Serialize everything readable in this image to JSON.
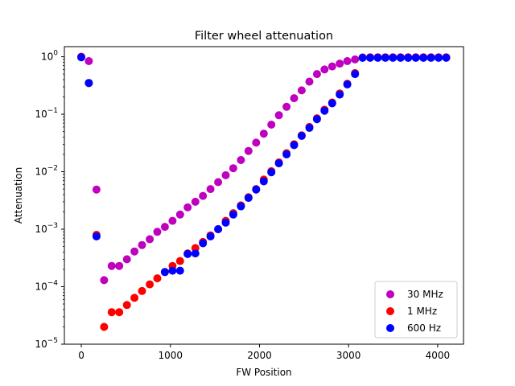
{
  "chart_data": {
    "type": "scatter",
    "title": "Filter wheel attenuation",
    "xlabel": "FW Position",
    "ylabel": "Attenuation",
    "xlim": [
      -190,
      4290
    ],
    "ylim": [
      1e-05,
      1.5
    ],
    "yscale": "log",
    "x_ticks": [
      0,
      1000,
      2000,
      3000,
      4000
    ],
    "y_ticks": [
      {
        "value": 1e-05,
        "base": "10",
        "exp": "−5"
      },
      {
        "value": 0.0001,
        "base": "10",
        "exp": "−4"
      },
      {
        "value": 0.001,
        "base": "10",
        "exp": "−3"
      },
      {
        "value": 0.01,
        "base": "10",
        "exp": "−2"
      },
      {
        "value": 0.1,
        "base": "10",
        "exp": "−1"
      },
      {
        "value": 1,
        "base": "10",
        "exp": "0"
      }
    ],
    "grid": false,
    "legend_position": "lower-right",
    "series": [
      {
        "name": "30 MHz",
        "color": "#bf00bf",
        "points": [
          [
            0,
            1.0
          ],
          [
            85,
            0.84
          ],
          [
            170,
            0.0049
          ],
          [
            256,
            0.00013
          ],
          [
            341,
            0.00023
          ],
          [
            426,
            0.00023
          ],
          [
            512,
            0.0003
          ],
          [
            597,
            0.00041
          ],
          [
            682,
            0.00053
          ],
          [
            768,
            0.00067
          ],
          [
            853,
            0.0009
          ],
          [
            938,
            0.0011
          ],
          [
            1024,
            0.0014
          ],
          [
            1109,
            0.0018
          ],
          [
            1194,
            0.0024
          ],
          [
            1280,
            0.003
          ],
          [
            1365,
            0.0038
          ],
          [
            1450,
            0.005
          ],
          [
            1536,
            0.0066
          ],
          [
            1621,
            0.0087
          ],
          [
            1706,
            0.0115
          ],
          [
            1792,
            0.016
          ],
          [
            1877,
            0.023
          ],
          [
            1962,
            0.032
          ],
          [
            2048,
            0.046
          ],
          [
            2133,
            0.066
          ],
          [
            2218,
            0.096
          ],
          [
            2304,
            0.135
          ],
          [
            2389,
            0.19
          ],
          [
            2474,
            0.26
          ],
          [
            2560,
            0.37
          ],
          [
            2645,
            0.5
          ],
          [
            2730,
            0.6
          ],
          [
            2816,
            0.68
          ],
          [
            2901,
            0.76
          ],
          [
            2986,
            0.84
          ],
          [
            3072,
            0.9
          ],
          [
            3157,
            0.97
          ],
          [
            3242,
            0.98
          ],
          [
            3328,
            0.98
          ],
          [
            3413,
            0.98
          ],
          [
            3498,
            0.98
          ],
          [
            3584,
            0.98
          ],
          [
            3669,
            0.98
          ],
          [
            3754,
            0.98
          ],
          [
            3840,
            0.98
          ],
          [
            3925,
            0.98
          ],
          [
            4010,
            0.98
          ],
          [
            4096,
            0.98
          ]
        ]
      },
      {
        "name": "1 MHz",
        "color": "#ff0000",
        "points": [
          [
            0,
            1.0
          ],
          [
            85,
            0.35
          ],
          [
            170,
            0.0008
          ],
          [
            256,
            2e-05
          ],
          [
            341,
            3.6e-05
          ],
          [
            426,
            3.6e-05
          ],
          [
            512,
            4.8e-05
          ],
          [
            597,
            6.4e-05
          ],
          [
            682,
            8.4e-05
          ],
          [
            768,
            0.00011
          ],
          [
            853,
            0.00014
          ],
          [
            938,
            0.00018
          ],
          [
            1024,
            0.00023
          ],
          [
            1109,
            0.00028
          ],
          [
            1194,
            0.00038
          ],
          [
            1280,
            0.00047
          ],
          [
            1365,
            0.0006
          ],
          [
            1450,
            0.00078
          ],
          [
            1536,
            0.001
          ],
          [
            1621,
            0.0014
          ],
          [
            1706,
            0.0019
          ],
          [
            1792,
            0.0026
          ],
          [
            1877,
            0.0036
          ],
          [
            1962,
            0.005
          ],
          [
            2048,
            0.0073
          ],
          [
            2133,
            0.0102
          ],
          [
            2218,
            0.0145
          ],
          [
            2304,
            0.021
          ],
          [
            2389,
            0.03
          ],
          [
            2474,
            0.043
          ],
          [
            2560,
            0.06
          ],
          [
            2645,
            0.085
          ],
          [
            2730,
            0.12
          ],
          [
            2816,
            0.16
          ],
          [
            2901,
            0.23
          ],
          [
            2986,
            0.34
          ],
          [
            3072,
            0.52
          ],
          [
            3157,
            0.97
          ],
          [
            3242,
            0.97
          ],
          [
            3328,
            0.97
          ],
          [
            3413,
            0.97
          ],
          [
            3498,
            0.97
          ],
          [
            3584,
            0.97
          ],
          [
            3669,
            0.97
          ],
          [
            3754,
            0.97
          ],
          [
            3840,
            0.97
          ],
          [
            3925,
            0.97
          ],
          [
            4010,
            0.97
          ],
          [
            4096,
            0.97
          ]
        ]
      },
      {
        "name": "600 Hz",
        "color": "#0000ff",
        "points": [
          [
            0,
            0.98
          ],
          [
            85,
            0.35
          ],
          [
            170,
            0.00075
          ],
          [
            938,
            0.00018
          ],
          [
            1024,
            0.00019
          ],
          [
            1109,
            0.00019
          ],
          [
            1194,
            0.00037
          ],
          [
            1280,
            0.00038
          ],
          [
            1365,
            0.00057
          ],
          [
            1450,
            0.00075
          ],
          [
            1536,
            0.001
          ],
          [
            1621,
            0.0013
          ],
          [
            1706,
            0.0018
          ],
          [
            1792,
            0.0025
          ],
          [
            1877,
            0.0035
          ],
          [
            1962,
            0.0049
          ],
          [
            2048,
            0.0068
          ],
          [
            2133,
            0.0098
          ],
          [
            2218,
            0.014
          ],
          [
            2304,
            0.02
          ],
          [
            2389,
            0.029
          ],
          [
            2474,
            0.042
          ],
          [
            2560,
            0.058
          ],
          [
            2645,
            0.082
          ],
          [
            2730,
            0.115
          ],
          [
            2816,
            0.155
          ],
          [
            2901,
            0.22
          ],
          [
            2986,
            0.33
          ],
          [
            3072,
            0.5
          ],
          [
            3157,
            0.96
          ],
          [
            3242,
            0.96
          ],
          [
            3328,
            0.96
          ],
          [
            3413,
            0.96
          ],
          [
            3498,
            0.96
          ],
          [
            3584,
            0.96
          ],
          [
            3669,
            0.96
          ],
          [
            3754,
            0.96
          ],
          [
            3840,
            0.96
          ],
          [
            3925,
            0.96
          ],
          [
            4010,
            0.96
          ],
          [
            4096,
            0.96
          ]
        ]
      }
    ]
  }
}
